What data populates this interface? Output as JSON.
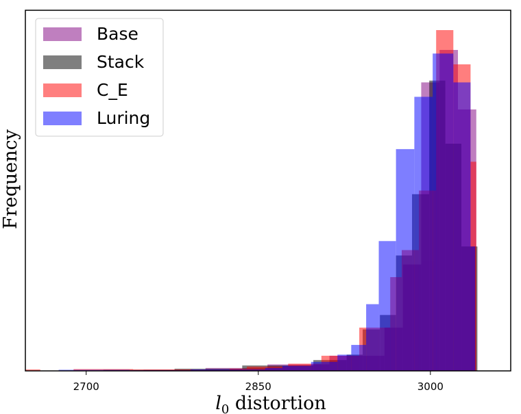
{
  "chart_data": {
    "type": "bar",
    "subtype": "overlapping-histogram",
    "xlabel": "distortion",
    "xlabel_math": "l",
    "xlabel_math_sub": "0",
    "ylabel": "Frequency",
    "xlim": [
      2647,
      3070
    ],
    "ylim": [
      0,
      100
    ],
    "xticks": [
      2700,
      2850,
      3000
    ],
    "yticks_shown": false,
    "grid": false,
    "legend_position": "top-left",
    "series": [
      {
        "name": "Base",
        "color": "#800080",
        "alpha": 0.5,
        "bins": [
          {
            "x0": 2750,
            "x1": 2804,
            "v": 0.3
          },
          {
            "x0": 2804,
            "x1": 2858,
            "v": 0.8
          },
          {
            "x0": 2858,
            "x1": 2912,
            "v": 1.8
          },
          {
            "x0": 2912,
            "x1": 2960,
            "v": 4.2
          },
          {
            "x0": 2960,
            "x1": 2976,
            "v": 12
          },
          {
            "x0": 2976,
            "x1": 2992,
            "v": 29.5
          },
          {
            "x0": 2992,
            "x1": 3008,
            "v": 80
          },
          {
            "x0": 3008,
            "x1": 3024,
            "v": 89
          },
          {
            "x0": 3024,
            "x1": 3040,
            "v": 72.5
          }
        ]
      },
      {
        "name": "Stack",
        "color": "#000000",
        "alpha": 0.5,
        "bins": [
          {
            "x0": 2715,
            "x1": 2777,
            "v": 0.3
          },
          {
            "x0": 2777,
            "x1": 2836,
            "v": 0.6
          },
          {
            "x0": 2836,
            "x1": 2898,
            "v": 1.5
          },
          {
            "x0": 2898,
            "x1": 2927,
            "v": 3
          },
          {
            "x0": 2927,
            "x1": 2941,
            "v": 4.5
          },
          {
            "x0": 2941,
            "x1": 2956,
            "v": 11.5
          },
          {
            "x0": 2956,
            "x1": 2970,
            "v": 15.5
          },
          {
            "x0": 2970,
            "x1": 2984,
            "v": 32
          },
          {
            "x0": 2984,
            "x1": 2999,
            "v": 49
          },
          {
            "x0": 2999,
            "x1": 3013,
            "v": 80.5
          },
          {
            "x0": 3013,
            "x1": 3027,
            "v": 63
          },
          {
            "x0": 3027,
            "x1": 3041,
            "v": 34.5
          }
        ]
      },
      {
        "name": "C_E",
        "color": "#ff0000",
        "alpha": 0.5,
        "bins": [
          {
            "x0": 2647,
            "x1": 2660,
            "v": 0.4
          },
          {
            "x0": 2689,
            "x1": 2741,
            "v": 0.5
          },
          {
            "x0": 2741,
            "x1": 2793,
            "v": 0.4
          },
          {
            "x0": 2793,
            "x1": 2825,
            "v": 0.3
          },
          {
            "x0": 2825,
            "x1": 2840,
            "v": 0.6
          },
          {
            "x0": 2840,
            "x1": 2876,
            "v": 1.2
          },
          {
            "x0": 2876,
            "x1": 2905,
            "v": 2
          },
          {
            "x0": 2905,
            "x1": 2938,
            "v": 4.2
          },
          {
            "x0": 2938,
            "x1": 2965,
            "v": 12
          },
          {
            "x0": 2965,
            "x1": 2975,
            "v": 26
          },
          {
            "x0": 2975,
            "x1": 2990,
            "v": 33.5
          },
          {
            "x0": 2990,
            "x1": 3005,
            "v": 50
          },
          {
            "x0": 3005,
            "x1": 3020,
            "v": 94.5
          },
          {
            "x0": 3020,
            "x1": 3035,
            "v": 85
          },
          {
            "x0": 3035,
            "x1": 3040,
            "v": 58
          }
        ]
      },
      {
        "name": "Luring",
        "color": "#0000ff",
        "alpha": 0.5,
        "bins": [
          {
            "x0": 2676,
            "x1": 2738,
            "v": 0.3
          },
          {
            "x0": 2738,
            "x1": 2791,
            "v": 0.2
          },
          {
            "x0": 2791,
            "x1": 2856,
            "v": 0.4
          },
          {
            "x0": 2856,
            "x1": 2871,
            "v": 0.8
          },
          {
            "x0": 2871,
            "x1": 2896,
            "v": 1.4
          },
          {
            "x0": 2896,
            "x1": 2919,
            "v": 2.5
          },
          {
            "x0": 2919,
            "x1": 2931,
            "v": 4.5
          },
          {
            "x0": 2931,
            "x1": 2944,
            "v": 7.2
          },
          {
            "x0": 2944,
            "x1": 2955,
            "v": 18.5
          },
          {
            "x0": 2955,
            "x1": 2970,
            "v": 36
          },
          {
            "x0": 2970,
            "x1": 2986,
            "v": 61.5
          },
          {
            "x0": 2986,
            "x1": 3002,
            "v": 76
          },
          {
            "x0": 3002,
            "x1": 3020,
            "v": 88
          },
          {
            "x0": 3020,
            "x1": 3035,
            "v": 80
          },
          {
            "x0": 3035,
            "x1": 3039,
            "v": 34.5
          }
        ]
      }
    ]
  }
}
